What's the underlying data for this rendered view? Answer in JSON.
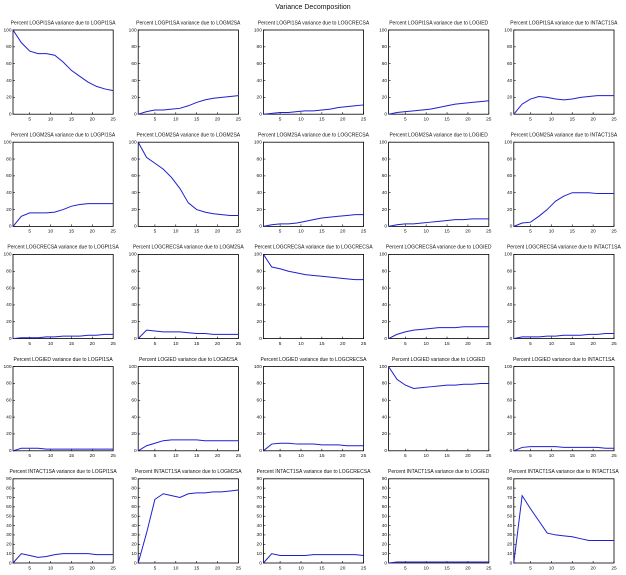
{
  "title": "Variance Decomposition",
  "chart_data": [
    {
      "type": "line",
      "title": "Percent LOGPI1SA variance due to LOGPI1SA",
      "x": [
        1,
        3,
        5,
        7,
        9,
        11,
        13,
        15,
        17,
        19,
        21,
        23,
        25
      ],
      "color": "#1f1fd0",
      "values": [
        100,
        85,
        75,
        72,
        72,
        70,
        62,
        52,
        45,
        38,
        33,
        30,
        28
      ],
      "xlim": [
        1,
        25
      ],
      "xticks": [
        5,
        10,
        15,
        20,
        25
      ],
      "ylim": [
        0,
        100
      ],
      "yticks": [
        0,
        20,
        40,
        60,
        80,
        100
      ]
    },
    {
      "type": "line",
      "title": "Percent LOGPI1SA variance due to LOGM2SA",
      "x": [
        1,
        3,
        5,
        7,
        9,
        11,
        13,
        15,
        17,
        19,
        21,
        23,
        25
      ],
      "color": "#1f1fd0",
      "values": [
        0,
        3,
        5,
        5,
        6,
        7,
        10,
        14,
        17,
        19,
        20,
        21,
        22
      ],
      "xlim": [
        1,
        25
      ],
      "xticks": [
        5,
        10,
        15,
        20,
        25
      ],
      "ylim": [
        0,
        100
      ],
      "yticks": [
        0,
        20,
        40,
        60,
        80,
        100
      ]
    },
    {
      "type": "line",
      "title": "Percent LOGPI1SA variance due to LOGCRECSA",
      "x": [
        1,
        3,
        5,
        7,
        9,
        11,
        13,
        15,
        17,
        19,
        21,
        23,
        25
      ],
      "color": "#1f1fd0",
      "values": [
        0,
        1,
        2,
        2,
        3,
        4,
        4,
        5,
        6,
        8,
        9,
        10,
        11
      ],
      "xlim": [
        1,
        25
      ],
      "xticks": [
        5,
        10,
        15,
        20,
        25
      ],
      "ylim": [
        0,
        100
      ],
      "yticks": [
        0,
        20,
        40,
        60,
        80,
        100
      ]
    },
    {
      "type": "line",
      "title": "Percent LOGPI1SA variance due to LOGIED",
      "x": [
        1,
        3,
        5,
        7,
        9,
        11,
        13,
        15,
        17,
        19,
        21,
        23,
        25
      ],
      "color": "#1f1fd0",
      "values": [
        0,
        2,
        3,
        4,
        5,
        6,
        8,
        10,
        12,
        13,
        14,
        15,
        16
      ],
      "xlim": [
        1,
        25
      ],
      "xticks": [
        5,
        10,
        15,
        20,
        25
      ],
      "ylim": [
        0,
        100
      ],
      "yticks": [
        0,
        20,
        40,
        60,
        80,
        100
      ]
    },
    {
      "type": "line",
      "title": "Percent LOGPI1SA variance due to INTACT1SA",
      "x": [
        1,
        3,
        5,
        7,
        9,
        11,
        13,
        15,
        17,
        19,
        21,
        23,
        25
      ],
      "color": "#1f1fd0",
      "values": [
        0,
        12,
        18,
        21,
        20,
        18,
        17,
        18,
        20,
        21,
        22,
        22,
        22
      ],
      "xlim": [
        1,
        25
      ],
      "xticks": [
        5,
        10,
        15,
        20,
        25
      ],
      "ylim": [
        0,
        100
      ],
      "yticks": [
        0,
        20,
        40,
        60,
        80,
        100
      ]
    },
    {
      "type": "line",
      "title": "Percent LOGM2SA variance due to LOGPI1SA",
      "x": [
        1,
        3,
        5,
        7,
        9,
        11,
        13,
        15,
        17,
        19,
        21,
        23,
        25
      ],
      "color": "#1f1fd0",
      "values": [
        0,
        12,
        16,
        16,
        16,
        17,
        20,
        24,
        26,
        27,
        27,
        27,
        27
      ],
      "xlim": [
        1,
        25
      ],
      "xticks": [
        5,
        10,
        15,
        20,
        25
      ],
      "ylim": [
        0,
        100
      ],
      "yticks": [
        0,
        20,
        40,
        60,
        80,
        100
      ]
    },
    {
      "type": "line",
      "title": "Percent LOGM2SA variance due to LOGM2SA",
      "x": [
        1,
        3,
        5,
        7,
        9,
        11,
        13,
        15,
        17,
        19,
        21,
        23,
        25
      ],
      "color": "#1f1fd0",
      "values": [
        100,
        82,
        75,
        68,
        58,
        45,
        28,
        20,
        17,
        15,
        14,
        13,
        13
      ],
      "xlim": [
        1,
        25
      ],
      "xticks": [
        5,
        10,
        15,
        20,
        25
      ],
      "ylim": [
        0,
        100
      ],
      "yticks": [
        0,
        20,
        40,
        60,
        80,
        100
      ]
    },
    {
      "type": "line",
      "title": "Percent LOGM2SA variance due to LOGCRECSA",
      "x": [
        1,
        3,
        5,
        7,
        9,
        11,
        13,
        15,
        17,
        19,
        21,
        23,
        25
      ],
      "color": "#1f1fd0",
      "values": [
        0,
        2,
        3,
        3,
        4,
        6,
        8,
        10,
        11,
        12,
        13,
        14,
        14
      ],
      "xlim": [
        1,
        25
      ],
      "xticks": [
        5,
        10,
        15,
        20,
        25
      ],
      "ylim": [
        0,
        100
      ],
      "yticks": [
        0,
        20,
        40,
        60,
        80,
        100
      ]
    },
    {
      "type": "line",
      "title": "Percent LOGM2SA variance due to LOGIED",
      "x": [
        1,
        3,
        5,
        7,
        9,
        11,
        13,
        15,
        17,
        19,
        21,
        23,
        25
      ],
      "color": "#1f1fd0",
      "values": [
        0,
        2,
        3,
        3,
        4,
        5,
        6,
        7,
        8,
        8,
        9,
        9,
        9
      ],
      "xlim": [
        1,
        25
      ],
      "xticks": [
        5,
        10,
        15,
        20,
        25
      ],
      "ylim": [
        0,
        100
      ],
      "yticks": [
        0,
        20,
        40,
        60,
        80,
        100
      ]
    },
    {
      "type": "line",
      "title": "Percent LOGM2SA variance due to INTACT1SA",
      "x": [
        1,
        3,
        5,
        7,
        9,
        11,
        13,
        15,
        17,
        19,
        21,
        23,
        25
      ],
      "color": "#1f1fd0",
      "values": [
        0,
        4,
        5,
        12,
        20,
        30,
        36,
        40,
        40,
        40,
        39,
        39,
        39
      ],
      "xlim": [
        1,
        25
      ],
      "xticks": [
        5,
        10,
        15,
        20,
        25
      ],
      "ylim": [
        0,
        100
      ],
      "yticks": [
        0,
        20,
        40,
        60,
        80,
        100
      ]
    },
    {
      "type": "line",
      "title": "Percent LOGCRECSA variance due to LOGPI1SA",
      "x": [
        1,
        3,
        5,
        7,
        9,
        11,
        13,
        15,
        17,
        19,
        21,
        23,
        25
      ],
      "color": "#1f1fd0",
      "values": [
        0,
        1,
        1,
        1,
        2,
        2,
        3,
        3,
        3,
        4,
        4,
        5,
        5
      ],
      "xlim": [
        1,
        25
      ],
      "xticks": [
        5,
        10,
        15,
        20,
        25
      ],
      "ylim": [
        0,
        100
      ],
      "yticks": [
        0,
        20,
        40,
        60,
        80,
        100
      ]
    },
    {
      "type": "line",
      "title": "Percent LOGCRECSA variance due to LOGM2SA",
      "x": [
        1,
        3,
        5,
        7,
        9,
        11,
        13,
        15,
        17,
        19,
        21,
        23,
        25
      ],
      "color": "#1f1fd0",
      "values": [
        0,
        10,
        9,
        8,
        8,
        8,
        7,
        6,
        6,
        5,
        5,
        5,
        5
      ],
      "xlim": [
        1,
        25
      ],
      "xticks": [
        5,
        10,
        15,
        20,
        25
      ],
      "ylim": [
        0,
        100
      ],
      "yticks": [
        0,
        20,
        40,
        60,
        80,
        100
      ]
    },
    {
      "type": "line",
      "title": "Percent LOGCRECSA variance due to LOGCRECSA",
      "x": [
        1,
        3,
        5,
        7,
        9,
        11,
        13,
        15,
        17,
        19,
        21,
        23,
        25
      ],
      "color": "#1f1fd0",
      "values": [
        100,
        85,
        83,
        80,
        78,
        76,
        75,
        74,
        73,
        72,
        71,
        70,
        70
      ],
      "xlim": [
        1,
        25
      ],
      "xticks": [
        5,
        10,
        15,
        20,
        25
      ],
      "ylim": [
        0,
        100
      ],
      "yticks": [
        0,
        20,
        40,
        60,
        80,
        100
      ]
    },
    {
      "type": "line",
      "title": "Percent LOGCRECSA variance due to LOGIED",
      "x": [
        1,
        3,
        5,
        7,
        9,
        11,
        13,
        15,
        17,
        19,
        21,
        23,
        25
      ],
      "color": "#1f1fd0",
      "values": [
        0,
        5,
        8,
        10,
        11,
        12,
        13,
        13,
        13,
        14,
        14,
        14,
        14
      ],
      "xlim": [
        1,
        25
      ],
      "xticks": [
        5,
        10,
        15,
        20,
        25
      ],
      "ylim": [
        0,
        100
      ],
      "yticks": [
        0,
        20,
        40,
        60,
        80,
        100
      ]
    },
    {
      "type": "line",
      "title": "Percent LOGCRECSA variance due to INTACT1SA",
      "x": [
        1,
        3,
        5,
        7,
        9,
        11,
        13,
        15,
        17,
        19,
        21,
        23,
        25
      ],
      "color": "#1f1fd0",
      "values": [
        0,
        2,
        2,
        2,
        3,
        3,
        4,
        4,
        4,
        5,
        5,
        6,
        6
      ],
      "xlim": [
        1,
        25
      ],
      "xticks": [
        5,
        10,
        15,
        20,
        25
      ],
      "ylim": [
        0,
        100
      ],
      "yticks": [
        0,
        20,
        40,
        60,
        80,
        100
      ]
    },
    {
      "type": "line",
      "title": "Percent LOGIED variance due to LOGPI1SA",
      "x": [
        1,
        3,
        5,
        7,
        9,
        11,
        13,
        15,
        17,
        19,
        21,
        23,
        25
      ],
      "color": "#1f1fd0",
      "values": [
        0,
        3,
        3,
        3,
        2,
        2,
        2,
        2,
        2,
        2,
        2,
        2,
        2
      ],
      "xlim": [
        1,
        25
      ],
      "xticks": [
        5,
        10,
        15,
        20,
        25
      ],
      "ylim": [
        0,
        100
      ],
      "yticks": [
        0,
        20,
        40,
        60,
        80,
        100
      ]
    },
    {
      "type": "line",
      "title": "Percent LOGIED variance due to LOGM2SA",
      "x": [
        1,
        3,
        5,
        7,
        9,
        11,
        13,
        15,
        17,
        19,
        21,
        23,
        25
      ],
      "color": "#1f1fd0",
      "values": [
        0,
        6,
        9,
        12,
        13,
        13,
        13,
        13,
        12,
        12,
        12,
        12,
        12
      ],
      "xlim": [
        1,
        25
      ],
      "xticks": [
        5,
        10,
        15,
        20,
        25
      ],
      "ylim": [
        0,
        100
      ],
      "yticks": [
        0,
        20,
        40,
        60,
        80,
        100
      ]
    },
    {
      "type": "line",
      "title": "Percent LOGIED variance due to LOGCRECSA",
      "x": [
        1,
        3,
        5,
        7,
        9,
        11,
        13,
        15,
        17,
        19,
        21,
        23,
        25
      ],
      "color": "#1f1fd0",
      "values": [
        0,
        8,
        9,
        9,
        8,
        8,
        8,
        7,
        7,
        7,
        6,
        6,
        6
      ],
      "xlim": [
        1,
        25
      ],
      "xticks": [
        5,
        10,
        15,
        20,
        25
      ],
      "ylim": [
        0,
        100
      ],
      "yticks": [
        0,
        20,
        40,
        60,
        80,
        100
      ]
    },
    {
      "type": "line",
      "title": "Percent LOGIED variance due to LOGIED",
      "x": [
        1,
        3,
        5,
        7,
        9,
        11,
        13,
        15,
        17,
        19,
        21,
        23,
        25
      ],
      "color": "#1f1fd0",
      "values": [
        100,
        85,
        78,
        74,
        75,
        76,
        77,
        78,
        78,
        79,
        79,
        80,
        80
      ],
      "xlim": [
        1,
        25
      ],
      "xticks": [
        5,
        10,
        15,
        20,
        25
      ],
      "ylim": [
        0,
        100
      ],
      "yticks": [
        0,
        20,
        40,
        60,
        80,
        100
      ]
    },
    {
      "type": "line",
      "title": "Percent LOGIED variance due to INTACT1SA",
      "x": [
        1,
        3,
        5,
        7,
        9,
        11,
        13,
        15,
        17,
        19,
        21,
        23,
        25
      ],
      "color": "#1f1fd0",
      "values": [
        0,
        4,
        5,
        5,
        5,
        5,
        4,
        4,
        4,
        4,
        4,
        3,
        3
      ],
      "xlim": [
        1,
        25
      ],
      "xticks": [
        5,
        10,
        15,
        20,
        25
      ],
      "ylim": [
        0,
        100
      ],
      "yticks": [
        0,
        20,
        40,
        60,
        80,
        100
      ]
    },
    {
      "type": "line",
      "title": "Percent INTACT1SA variance due to LOGPI1SA",
      "x": [
        1,
        3,
        5,
        7,
        9,
        11,
        13,
        15,
        17,
        19,
        21,
        23,
        25
      ],
      "color": "#1f1fd0",
      "values": [
        0,
        10,
        8,
        6,
        7,
        9,
        10,
        10,
        10,
        10,
        9,
        9,
        9
      ],
      "xlim": [
        1,
        25
      ],
      "xticks": [
        5,
        10,
        15,
        20,
        25
      ],
      "ylim": [
        0,
        90
      ],
      "yticks": [
        0,
        10,
        20,
        30,
        40,
        50,
        60,
        70,
        80,
        90
      ]
    },
    {
      "type": "line",
      "title": "Percent INTACT1SA variance due to LOGM2SA",
      "x": [
        1,
        3,
        5,
        7,
        9,
        11,
        13,
        15,
        17,
        19,
        21,
        23,
        25
      ],
      "color": "#1f1fd0",
      "values": [
        0,
        32,
        68,
        74,
        72,
        70,
        74,
        75,
        75,
        76,
        76,
        77,
        78
      ],
      "xlim": [
        1,
        25
      ],
      "xticks": [
        5,
        10,
        15,
        20,
        25
      ],
      "ylim": [
        0,
        90
      ],
      "yticks": [
        0,
        10,
        20,
        30,
        40,
        50,
        60,
        70,
        80,
        90
      ]
    },
    {
      "type": "line",
      "title": "Percent INTACT1SA variance due to LOGCRECSA",
      "x": [
        1,
        3,
        5,
        7,
        9,
        11,
        13,
        15,
        17,
        19,
        21,
        23,
        25
      ],
      "color": "#1f1fd0",
      "values": [
        0,
        10,
        8,
        8,
        8,
        8,
        9,
        9,
        9,
        9,
        9,
        9,
        8
      ],
      "xlim": [
        1,
        25
      ],
      "xticks": [
        5,
        10,
        15,
        20,
        25
      ],
      "ylim": [
        0,
        90
      ],
      "yticks": [
        0,
        10,
        20,
        30,
        40,
        50,
        60,
        70,
        80,
        90
      ]
    },
    {
      "type": "line",
      "title": "Percent INTACT1SA variance due to LOGIED",
      "x": [
        1,
        3,
        5,
        7,
        9,
        11,
        13,
        15,
        17,
        19,
        21,
        23,
        25
      ],
      "color": "#1f1fd0",
      "values": [
        0,
        1,
        1,
        1,
        1,
        1,
        1,
        1,
        1,
        1,
        1,
        1,
        1
      ],
      "xlim": [
        1,
        25
      ],
      "xticks": [
        5,
        10,
        15,
        20,
        25
      ],
      "ylim": [
        0,
        90
      ],
      "yticks": [
        0,
        10,
        20,
        30,
        40,
        50,
        60,
        70,
        80,
        90
      ]
    },
    {
      "type": "line",
      "title": "Percent INTACT1SA variance due to INTACT1SA",
      "x": [
        1,
        3,
        5,
        7,
        9,
        11,
        13,
        15,
        17,
        19,
        21,
        23,
        25
      ],
      "color": "#1f1fd0",
      "values": [
        0,
        72,
        58,
        45,
        32,
        30,
        29,
        28,
        26,
        24,
        24,
        24,
        24
      ],
      "xlim": [
        1,
        25
      ],
      "xticks": [
        5,
        10,
        15,
        20,
        25
      ],
      "ylim": [
        0,
        90
      ],
      "yticks": [
        0,
        10,
        20,
        30,
        40,
        50,
        60,
        70,
        80,
        90
      ]
    }
  ]
}
